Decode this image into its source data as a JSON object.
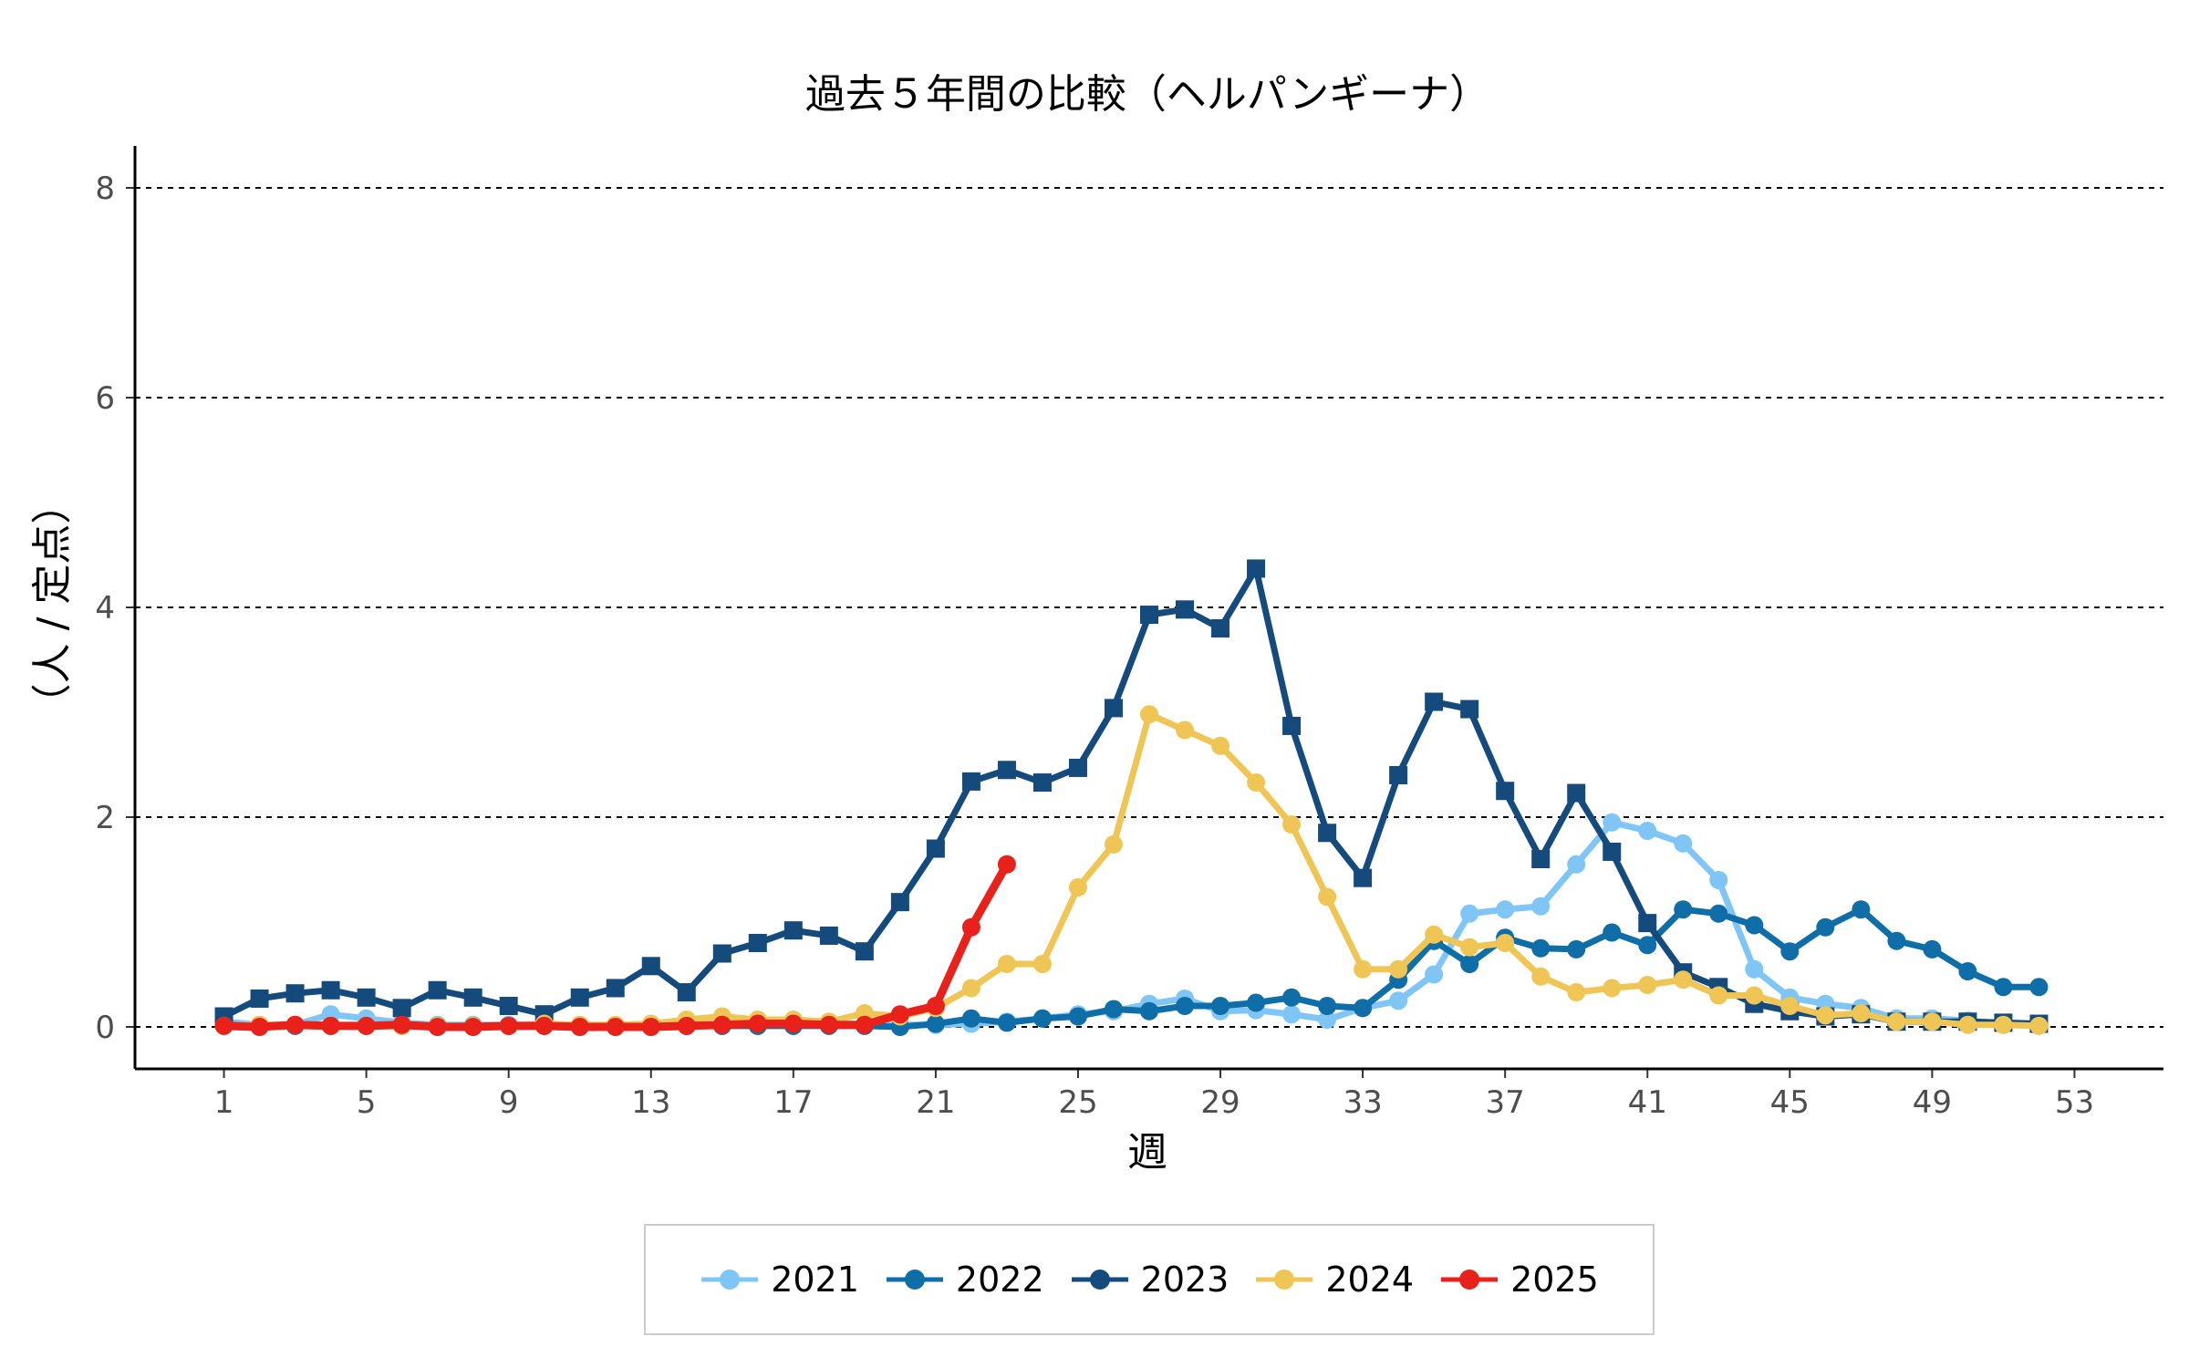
{
  "chart_data": {
    "type": "line",
    "title": "過去５年間の比較（ヘルパンギーナ）",
    "xlabel": "週",
    "ylabel": "（人 / 定点）",
    "xlim": [
      -1.5,
      55.5
    ],
    "ylim": [
      -0.4,
      8.4
    ],
    "x_ticks": [
      1,
      5,
      9,
      13,
      17,
      21,
      25,
      29,
      33,
      37,
      41,
      45,
      49,
      53
    ],
    "y_ticks": [
      0,
      2,
      4,
      6,
      8
    ],
    "grid": "horizontal dashed",
    "legend_position": "bottom",
    "series": [
      {
        "name": "2021",
        "color": "#7fc6f7",
        "marker": "circle",
        "x": [
          1,
          2,
          3,
          4,
          5,
          6,
          7,
          8,
          9,
          10,
          11,
          12,
          13,
          14,
          15,
          16,
          17,
          18,
          19,
          20,
          21,
          22,
          23,
          24,
          25,
          26,
          27,
          28,
          29,
          30,
          31,
          32,
          33,
          34,
          35,
          36,
          37,
          38,
          39,
          40,
          41,
          42,
          43,
          44,
          45,
          46,
          47,
          48,
          49,
          50,
          51,
          52
        ],
        "values": [
          0.05,
          0.02,
          0.02,
          0.12,
          0.08,
          0.04,
          0.02,
          0.02,
          0.02,
          0.02,
          0.02,
          0.01,
          0.01,
          0.01,
          0.01,
          0.01,
          0.02,
          0.02,
          0.02,
          0.02,
          0.02,
          0.03,
          0.05,
          0.08,
          0.12,
          0.15,
          0.22,
          0.27,
          0.15,
          0.16,
          0.12,
          0.07,
          0.18,
          0.25,
          0.5,
          1.08,
          1.12,
          1.15,
          1.55,
          1.95,
          1.87,
          1.75,
          1.4,
          0.55,
          0.28,
          0.22,
          0.18,
          0.08,
          0.08,
          0.06,
          0.03,
          0.02
        ]
      },
      {
        "name": "2022",
        "color": "#0f6ea8",
        "marker": "circle",
        "x": [
          1,
          2,
          3,
          4,
          5,
          6,
          7,
          8,
          9,
          10,
          11,
          12,
          13,
          14,
          15,
          16,
          17,
          18,
          19,
          20,
          21,
          22,
          23,
          24,
          25,
          26,
          27,
          28,
          29,
          30,
          31,
          32,
          33,
          34,
          35,
          36,
          37,
          38,
          39,
          40,
          41,
          42,
          43,
          44,
          45,
          46,
          47,
          48,
          49,
          50,
          51,
          52
        ],
        "values": [
          0.02,
          0.01,
          0.01,
          0.01,
          0.01,
          0.01,
          0.01,
          0.01,
          0.01,
          0.01,
          0.01,
          0.01,
          0.01,
          0.01,
          0.01,
          0.01,
          0.01,
          0.01,
          0.01,
          0.0,
          0.03,
          0.08,
          0.04,
          0.08,
          0.1,
          0.17,
          0.15,
          0.2,
          0.2,
          0.23,
          0.28,
          0.2,
          0.18,
          0.45,
          0.82,
          0.6,
          0.85,
          0.75,
          0.74,
          0.9,
          0.78,
          1.12,
          1.08,
          0.97,
          0.72,
          0.95,
          1.12,
          0.82,
          0.74,
          0.53,
          0.38,
          0.38
        ]
      },
      {
        "name": "2023",
        "color": "#154a7c",
        "marker": "square",
        "x": [
          1,
          2,
          3,
          4,
          5,
          6,
          7,
          8,
          9,
          10,
          11,
          12,
          13,
          14,
          15,
          16,
          17,
          18,
          19,
          20,
          21,
          22,
          23,
          24,
          25,
          26,
          27,
          28,
          29,
          30,
          31,
          32,
          33,
          34,
          35,
          36,
          37,
          38,
          39,
          40,
          41,
          42,
          43,
          44,
          45,
          46,
          47,
          48,
          49,
          50,
          51,
          52
        ],
        "values": [
          0.1,
          0.27,
          0.32,
          0.35,
          0.28,
          0.18,
          0.35,
          0.28,
          0.2,
          0.12,
          0.28,
          0.37,
          0.58,
          0.33,
          0.7,
          0.8,
          0.92,
          0.87,
          0.72,
          1.19,
          1.7,
          2.34,
          2.45,
          2.33,
          2.47,
          3.04,
          3.93,
          3.98,
          3.8,
          4.37,
          2.87,
          1.85,
          1.42,
          2.4,
          3.1,
          3.03,
          2.25,
          1.6,
          2.23,
          1.67,
          0.99,
          0.52,
          0.38,
          0.22,
          0.15,
          0.1,
          0.12,
          0.05,
          0.05,
          0.05,
          0.04,
          0.03
        ]
      },
      {
        "name": "2024",
        "color": "#efc655",
        "marker": "circle",
        "x": [
          1,
          2,
          3,
          4,
          5,
          6,
          7,
          8,
          9,
          10,
          11,
          12,
          13,
          14,
          15,
          16,
          17,
          18,
          19,
          20,
          21,
          22,
          23,
          24,
          25,
          26,
          27,
          28,
          29,
          30,
          31,
          32,
          33,
          34,
          35,
          36,
          37,
          38,
          39,
          40,
          41,
          42,
          43,
          44,
          45,
          46,
          47,
          48,
          49,
          50,
          51,
          52
        ],
        "values": [
          0.01,
          0.02,
          0.02,
          0.01,
          0.01,
          0.01,
          0.01,
          0.01,
          0.01,
          0.03,
          0.02,
          0.02,
          0.03,
          0.07,
          0.1,
          0.07,
          0.07,
          0.05,
          0.13,
          0.1,
          0.18,
          0.37,
          0.6,
          0.6,
          1.33,
          1.74,
          2.98,
          2.83,
          2.68,
          2.33,
          1.93,
          1.24,
          0.55,
          0.55,
          0.88,
          0.76,
          0.8,
          0.48,
          0.33,
          0.37,
          0.4,
          0.45,
          0.3,
          0.3,
          0.2,
          0.11,
          0.13,
          0.05,
          0.05,
          0.02,
          0.02,
          0.01
        ]
      },
      {
        "name": "2025",
        "color": "#e8211b",
        "marker": "circle",
        "x": [
          1,
          2,
          3,
          4,
          5,
          6,
          7,
          8,
          9,
          10,
          11,
          12,
          13,
          14,
          15,
          16,
          17,
          18,
          19,
          20,
          21,
          22,
          23
        ],
        "values": [
          0.01,
          0.0,
          0.02,
          0.01,
          0.01,
          0.02,
          0.0,
          0.0,
          0.01,
          0.01,
          0.0,
          0.0,
          0.0,
          0.01,
          0.02,
          0.03,
          0.03,
          0.02,
          0.02,
          0.12,
          0.2,
          0.95,
          1.55
        ]
      }
    ]
  }
}
